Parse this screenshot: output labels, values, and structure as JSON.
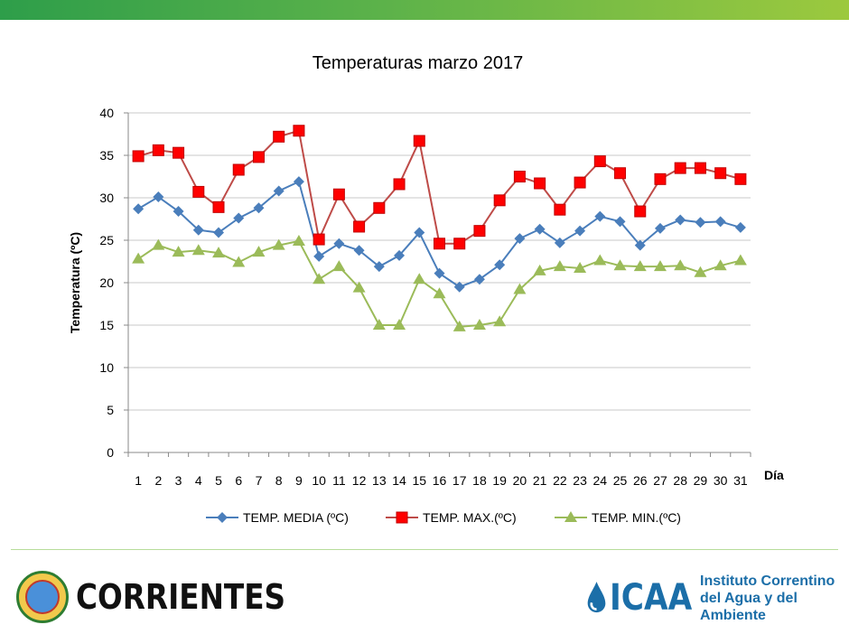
{
  "chart_data": {
    "type": "line",
    "title": "Temperaturas marzo 2017",
    "xlabel": "Día",
    "ylabel": "Temperatura (ºC)",
    "ylim": [
      0,
      40
    ],
    "yticks": [
      0,
      5,
      10,
      15,
      20,
      25,
      30,
      35,
      40
    ],
    "grid": "horizontal",
    "legend": "bottom",
    "categories": [
      "1",
      "2",
      "3",
      "4",
      "5",
      "6",
      "7",
      "8",
      "9",
      "10",
      "11",
      "12",
      "13",
      "14",
      "15",
      "16",
      "17",
      "18",
      "19",
      "20",
      "21",
      "22",
      "23",
      "24",
      "25",
      "26",
      "27",
      "28",
      "29",
      "30",
      "31"
    ],
    "series": [
      {
        "name": "TEMP. MEDIA  (ºC)",
        "color": "#4a7ebb",
        "marker": "diamond",
        "values": [
          28.7,
          30.1,
          28.4,
          26.2,
          25.9,
          27.6,
          28.8,
          30.8,
          31.9,
          23.1,
          24.6,
          23.8,
          21.9,
          23.2,
          25.9,
          21.1,
          19.5,
          20.4,
          22.1,
          25.2,
          26.3,
          24.7,
          26.1,
          27.8,
          27.2,
          24.4,
          26.4,
          27.4,
          27.1,
          27.2,
          26.5
        ]
      },
      {
        "name": "TEMP. MAX.(ºC)",
        "color": "#be4b48",
        "marker": "square",
        "values": [
          34.9,
          35.6,
          35.3,
          30.7,
          28.9,
          33.3,
          34.8,
          37.2,
          37.9,
          25.1,
          30.4,
          26.6,
          28.8,
          31.6,
          36.7,
          24.6,
          24.6,
          26.1,
          29.7,
          32.5,
          31.7,
          28.6,
          31.8,
          34.3,
          32.9,
          28.4,
          32.2,
          33.5,
          33.5,
          32.9,
          32.2
        ]
      },
      {
        "name": "TEMP. MIN.(ºC)",
        "color": "#9bbb59",
        "marker": "triangle",
        "values": [
          22.8,
          24.4,
          23.6,
          23.8,
          23.5,
          22.4,
          23.6,
          24.4,
          24.9,
          20.4,
          21.9,
          19.4,
          15.0,
          15.0,
          20.4,
          18.7,
          14.8,
          15.0,
          15.4,
          19.2,
          21.4,
          21.9,
          21.7,
          22.6,
          22.0,
          21.9,
          21.9,
          22.0,
          21.2,
          22.0,
          22.6
        ]
      }
    ]
  },
  "branding": {
    "left_logo_text": "CORRIENTES",
    "right_logo_acronym": "ICAA",
    "right_logo_line1": "Instituto Correntino",
    "right_logo_line2": "del Agua y del Ambiente"
  },
  "colors": {
    "top_bar_start": "#2e9e4a",
    "top_bar_end": "#9cc93e",
    "grid": "#c8c8c8"
  }
}
